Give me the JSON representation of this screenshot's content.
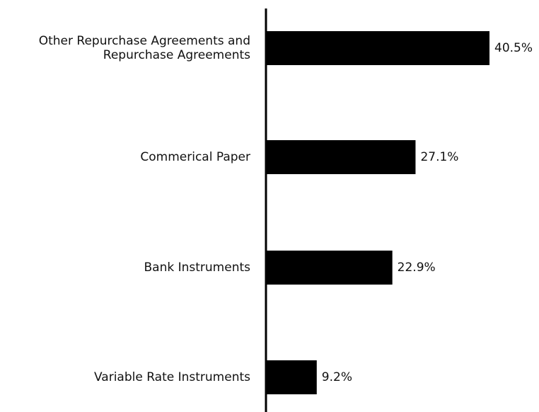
{
  "chart_data": {
    "type": "bar",
    "orientation": "horizontal",
    "categories": [
      [
        "Other Repurchase Agreements and",
        "Repurchase Agreements"
      ],
      [
        "Commerical Paper"
      ],
      [
        "Bank Instruments"
      ],
      [
        "Variable Rate Instruments"
      ]
    ],
    "values": [
      40.5,
      27.1,
      22.9,
      9.2
    ],
    "value_labels": [
      "40.5%",
      "27.1%",
      "22.9%",
      "9.2%"
    ],
    "unit": "%",
    "title": "",
    "xlabel": "",
    "ylabel": "",
    "grid": false,
    "legend": "none",
    "bar_color": "#000000",
    "axis_color": "#000000"
  }
}
